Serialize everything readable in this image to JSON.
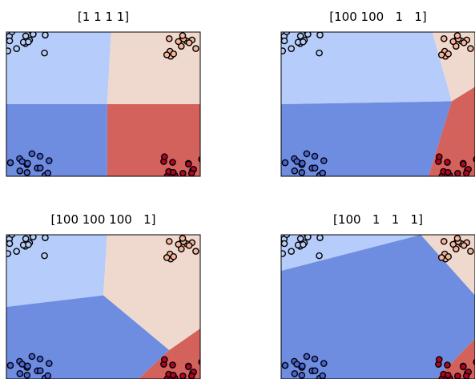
{
  "chart_data": [
    {
      "type": "scatter",
      "title": "[1 1 1 1]",
      "description_regions": "decision regions from class weights",
      "regions": [
        {
          "class": 0,
          "color": "#b6cdfb",
          "polygon": [
            [
              0,
              0
            ],
            [
              0.54,
              0
            ],
            [
              0.52,
              0.5
            ],
            [
              0,
              0.5
            ]
          ]
        },
        {
          "class": 1,
          "color": "#efd9ce",
          "polygon": [
            [
              0.54,
              0
            ],
            [
              1,
              0
            ],
            [
              1,
              0.5
            ],
            [
              0.52,
              0.5
            ]
          ]
        },
        {
          "class": 2,
          "color": "#6e8de0",
          "polygon": [
            [
              0,
              0.5
            ],
            [
              0.52,
              0.5
            ],
            [
              0.52,
              1
            ],
            [
              0,
              1
            ]
          ]
        },
        {
          "class": 3,
          "color": "#d4625c",
          "polygon": [
            [
              0.52,
              0.5
            ],
            [
              1,
              0.5
            ],
            [
              1,
              1
            ],
            [
              0.52,
              1
            ]
          ]
        }
      ]
    },
    {
      "type": "scatter",
      "title": "[100 100   1   1]",
      "regions": [
        {
          "class": 0,
          "color": "#b6cdfb",
          "polygon": [
            [
              0,
              0
            ],
            [
              0.78,
              0
            ],
            [
              0.88,
              0.48
            ],
            [
              0,
              0.5
            ]
          ]
        },
        {
          "class": 1,
          "color": "#efd9ce",
          "polygon": [
            [
              0.78,
              0
            ],
            [
              1,
              0
            ],
            [
              1,
              0.38
            ],
            [
              0.88,
              0.48
            ]
          ]
        },
        {
          "class": 2,
          "color": "#6e8de0",
          "polygon": [
            [
              0,
              0.5
            ],
            [
              0.88,
              0.48
            ],
            [
              0.76,
              1
            ],
            [
              0,
              1
            ]
          ]
        },
        {
          "class": 3,
          "color": "#d4625c",
          "polygon": [
            [
              0.88,
              0.48
            ],
            [
              1,
              0.38
            ],
            [
              1,
              1
            ],
            [
              0.76,
              1
            ]
          ]
        }
      ]
    },
    {
      "type": "scatter",
      "title": "[100 100 100   1]",
      "regions": [
        {
          "class": 0,
          "color": "#b6cdfb",
          "polygon": [
            [
              0,
              0
            ],
            [
              0.52,
              0
            ],
            [
              0.5,
              0.42
            ],
            [
              0,
              0.5
            ]
          ]
        },
        {
          "class": 1,
          "color": "#efd9ce",
          "polygon": [
            [
              0.52,
              0
            ],
            [
              1,
              0
            ],
            [
              1,
              0.65
            ],
            [
              0.84,
              0.8
            ],
            [
              0.5,
              0.42
            ]
          ]
        },
        {
          "class": 2,
          "color": "#6e8de0",
          "polygon": [
            [
              0,
              0.5
            ],
            [
              0.5,
              0.42
            ],
            [
              0.84,
              0.8
            ],
            [
              0.68,
              1
            ],
            [
              0,
              1
            ]
          ]
        },
        {
          "class": 3,
          "color": "#d4625c",
          "polygon": [
            [
              0.84,
              0.8
            ],
            [
              1,
              0.65
            ],
            [
              1,
              1
            ],
            [
              0.68,
              1
            ]
          ]
        }
      ]
    },
    {
      "type": "scatter",
      "title": "[100   1   1   1]",
      "regions": [
        {
          "class": 0,
          "color": "#b6cdfb",
          "polygon": [
            [
              0,
              0
            ],
            [
              0.72,
              0
            ],
            [
              0,
              0.25
            ]
          ]
        },
        {
          "class": 1,
          "color": "#efd9ce",
          "polygon": [
            [
              0.72,
              0
            ],
            [
              1,
              0
            ],
            [
              1,
              0.42
            ]
          ]
        },
        {
          "class": 2,
          "color": "#6e8de0",
          "polygon": [
            [
              0,
              0.25
            ],
            [
              0.72,
              0
            ],
            [
              1,
              0.42
            ],
            [
              1,
              0.72
            ],
            [
              0.8,
              1
            ],
            [
              0,
              1
            ]
          ]
        },
        {
          "class": 3,
          "color": "#d4625c",
          "polygon": [
            [
              1,
              0.72
            ],
            [
              1,
              1
            ],
            [
              0.8,
              1
            ]
          ]
        }
      ]
    }
  ],
  "points": {
    "clusters": [
      {
        "color": "#b6cdfb",
        "cx": 0.1,
        "cy": 0.07
      },
      {
        "color": "#f7b59a",
        "cx": 0.92,
        "cy": 0.09
      },
      {
        "color": "#4a63d3",
        "cx": 0.12,
        "cy": 0.92
      },
      {
        "color": "#b40426",
        "cx": 0.92,
        "cy": 0.92
      }
    ]
  }
}
